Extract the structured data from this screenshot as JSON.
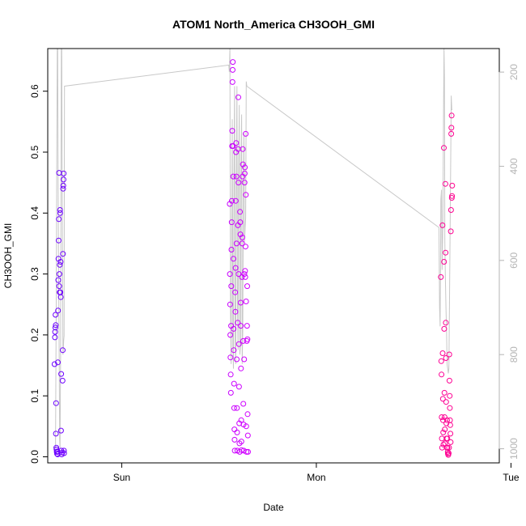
{
  "chart_data": {
    "type": "scatter",
    "title": "ATOM1 North_America CH3OOH_GMI",
    "xlabel": "Date",
    "ylabel": "CH3OOH_GMI",
    "x_ticks": [
      "Sun",
      "Mon",
      "Tue"
    ],
    "x_tick_values": [
      0,
      1,
      2
    ],
    "xlim": [
      -0.38,
      1.94
    ],
    "ylim": [
      -0.01,
      0.67
    ],
    "y_ticks": [
      0.0,
      0.1,
      0.2,
      0.3,
      0.4,
      0.5,
      0.6
    ],
    "right_axis": {
      "label": "",
      "ticks": [
        200,
        400,
        600,
        800,
        1000
      ],
      "reversed": true,
      "lim": [
        1030,
        150
      ],
      "color": "#b4b4b4"
    },
    "grid": false,
    "legend": "none",
    "colors": {
      "points_start": "#6a00ff",
      "points_mid": "#d400ff",
      "points_end": "#ff0090",
      "pressure_line": "#c8c8c8",
      "axis": "#000000"
    },
    "series": [
      {
        "values": [
          {
            "x": -0.345,
            "y": 0.152
          },
          {
            "x": -0.343,
            "y": 0.196
          },
          {
            "x": -0.342,
            "y": 0.205
          },
          {
            "x": -0.341,
            "y": 0.212
          },
          {
            "x": -0.34,
            "y": 0.233
          },
          {
            "x": -0.339,
            "y": 0.216
          },
          {
            "x": -0.338,
            "y": 0.038
          },
          {
            "x": -0.337,
            "y": 0.088
          },
          {
            "x": -0.336,
            "y": 0.015
          },
          {
            "x": -0.334,
            "y": 0.008
          },
          {
            "x": -0.332,
            "y": 0.005
          },
          {
            "x": -0.33,
            "y": 0.009
          },
          {
            "x": -0.328,
            "y": 0.155
          },
          {
            "x": -0.327,
            "y": 0.24
          },
          {
            "x": -0.326,
            "y": 0.29
          },
          {
            "x": -0.325,
            "y": 0.325
          },
          {
            "x": -0.324,
            "y": 0.355
          },
          {
            "x": -0.323,
            "y": 0.39
          },
          {
            "x": -0.322,
            "y": 0.466
          },
          {
            "x": -0.321,
            "y": 0.28
          },
          {
            "x": -0.32,
            "y": 0.3
          },
          {
            "x": -0.319,
            "y": 0.27
          },
          {
            "x": -0.318,
            "y": 0.315
          },
          {
            "x": -0.317,
            "y": 0.405
          },
          {
            "x": -0.316,
            "y": 0.4
          },
          {
            "x": -0.315,
            "y": 0.27
          },
          {
            "x": -0.314,
            "y": 0.32
          },
          {
            "x": -0.313,
            "y": 0.262
          },
          {
            "x": -0.312,
            "y": 0.043
          },
          {
            "x": -0.311,
            "y": 0.136
          },
          {
            "x": -0.31,
            "y": 0.01
          },
          {
            "x": -0.308,
            "y": 0.004
          },
          {
            "x": -0.306,
            "y": 0.007
          },
          {
            "x": -0.304,
            "y": 0.125
          },
          {
            "x": -0.303,
            "y": 0.175
          },
          {
            "x": -0.302,
            "y": 0.333
          },
          {
            "x": -0.301,
            "y": 0.44
          },
          {
            "x": -0.3,
            "y": 0.445
          },
          {
            "x": -0.299,
            "y": 0.455
          },
          {
            "x": -0.298,
            "y": 0.465
          },
          {
            "x": -0.297,
            "y": 0.01
          },
          {
            "x": -0.296,
            "y": 0.006
          },
          {
            "x": -0.335,
            "y": 0.012
          },
          {
            "x": -0.329,
            "y": 0.004
          },
          {
            "x": -0.331,
            "y": 0.008
          }
        ]
      },
      {
        "values": [
          {
            "x": 0.555,
            "y": 0.415
          },
          {
            "x": 0.556,
            "y": 0.3
          },
          {
            "x": 0.557,
            "y": 0.25
          },
          {
            "x": 0.558,
            "y": 0.2
          },
          {
            "x": 0.559,
            "y": 0.163
          },
          {
            "x": 0.56,
            "y": 0.135
          },
          {
            "x": 0.561,
            "y": 0.105
          },
          {
            "x": 0.562,
            "y": 0.215
          },
          {
            "x": 0.563,
            "y": 0.28
          },
          {
            "x": 0.564,
            "y": 0.34
          },
          {
            "x": 0.565,
            "y": 0.385
          },
          {
            "x": 0.566,
            "y": 0.42
          },
          {
            "x": 0.567,
            "y": 0.51
          },
          {
            "x": 0.568,
            "y": 0.535
          },
          {
            "x": 0.569,
            "y": 0.615
          },
          {
            "x": 0.57,
            "y": 0.635
          },
          {
            "x": 0.571,
            "y": 0.648
          },
          {
            "x": 0.572,
            "y": 0.51
          },
          {
            "x": 0.573,
            "y": 0.46
          },
          {
            "x": 0.574,
            "y": 0.325
          },
          {
            "x": 0.575,
            "y": 0.21
          },
          {
            "x": 0.576,
            "y": 0.175
          },
          {
            "x": 0.577,
            "y": 0.12
          },
          {
            "x": 0.578,
            "y": 0.08
          },
          {
            "x": 0.579,
            "y": 0.045
          },
          {
            "x": 0.58,
            "y": 0.028
          },
          {
            "x": 0.581,
            "y": 0.01
          },
          {
            "x": 0.583,
            "y": 0.27
          },
          {
            "x": 0.584,
            "y": 0.238
          },
          {
            "x": 0.585,
            "y": 0.31
          },
          {
            "x": 0.586,
            "y": 0.42
          },
          {
            "x": 0.587,
            "y": 0.5
          },
          {
            "x": 0.588,
            "y": 0.515
          },
          {
            "x": 0.589,
            "y": 0.46
          },
          {
            "x": 0.59,
            "y": 0.35
          },
          {
            "x": 0.591,
            "y": 0.16
          },
          {
            "x": 0.592,
            "y": 0.08
          },
          {
            "x": 0.593,
            "y": 0.04
          },
          {
            "x": 0.594,
            "y": 0.01
          },
          {
            "x": 0.596,
            "y": 0.22
          },
          {
            "x": 0.597,
            "y": 0.38
          },
          {
            "x": 0.598,
            "y": 0.505
          },
          {
            "x": 0.599,
            "y": 0.59
          },
          {
            "x": 0.6,
            "y": 0.45
          },
          {
            "x": 0.601,
            "y": 0.3
          },
          {
            "x": 0.602,
            "y": 0.185
          },
          {
            "x": 0.603,
            "y": 0.115
          },
          {
            "x": 0.604,
            "y": 0.055
          },
          {
            "x": 0.605,
            "y": 0.022
          },
          {
            "x": 0.606,
            "y": 0.008
          },
          {
            "x": 0.608,
            "y": 0.402
          },
          {
            "x": 0.609,
            "y": 0.385
          },
          {
            "x": 0.61,
            "y": 0.365
          },
          {
            "x": 0.611,
            "y": 0.253
          },
          {
            "x": 0.612,
            "y": 0.215
          },
          {
            "x": 0.613,
            "y": 0.145
          },
          {
            "x": 0.614,
            "y": 0.06
          },
          {
            "x": 0.615,
            "y": 0.025
          },
          {
            "x": 0.616,
            "y": 0.011
          },
          {
            "x": 0.618,
            "y": 0.295
          },
          {
            "x": 0.619,
            "y": 0.35
          },
          {
            "x": 0.62,
            "y": 0.36
          },
          {
            "x": 0.621,
            "y": 0.46
          },
          {
            "x": 0.622,
            "y": 0.505
          },
          {
            "x": 0.623,
            "y": 0.48
          },
          {
            "x": 0.624,
            "y": 0.19
          },
          {
            "x": 0.625,
            "y": 0.087
          },
          {
            "x": 0.626,
            "y": 0.053
          },
          {
            "x": 0.627,
            "y": 0.01
          },
          {
            "x": 0.629,
            "y": 0.16
          },
          {
            "x": 0.63,
            "y": 0.3
          },
          {
            "x": 0.631,
            "y": 0.45
          },
          {
            "x": 0.632,
            "y": 0.465
          },
          {
            "x": 0.633,
            "y": 0.475
          },
          {
            "x": 0.634,
            "y": 0.305
          },
          {
            "x": 0.635,
            "y": 0.295
          },
          {
            "x": 0.636,
            "y": 0.345
          },
          {
            "x": 0.637,
            "y": 0.53
          },
          {
            "x": 0.638,
            "y": 0.43
          },
          {
            "x": 0.639,
            "y": 0.255
          },
          {
            "x": 0.64,
            "y": 0.05
          },
          {
            "x": 0.641,
            "y": 0.008
          },
          {
            "x": 0.643,
            "y": 0.19
          },
          {
            "x": 0.644,
            "y": 0.215
          },
          {
            "x": 0.645,
            "y": 0.28
          },
          {
            "x": 0.646,
            "y": 0.193
          },
          {
            "x": 0.647,
            "y": 0.07
          },
          {
            "x": 0.648,
            "y": 0.035
          },
          {
            "x": 0.649,
            "y": 0.008
          }
        ]
      },
      {
        "values": [
          {
            "x": 1.64,
            "y": 0.295
          },
          {
            "x": 1.642,
            "y": 0.157
          },
          {
            "x": 1.643,
            "y": 0.135
          },
          {
            "x": 1.644,
            "y": 0.065
          },
          {
            "x": 1.645,
            "y": 0.03
          },
          {
            "x": 1.646,
            "y": 0.015
          },
          {
            "x": 1.648,
            "y": 0.38
          },
          {
            "x": 1.649,
            "y": 0.17
          },
          {
            "x": 1.65,
            "y": 0.095
          },
          {
            "x": 1.651,
            "y": 0.06
          },
          {
            "x": 1.652,
            "y": 0.04
          },
          {
            "x": 1.653,
            "y": 0.02
          },
          {
            "x": 1.655,
            "y": 0.507
          },
          {
            "x": 1.656,
            "y": 0.32
          },
          {
            "x": 1.657,
            "y": 0.21
          },
          {
            "x": 1.658,
            "y": 0.105
          },
          {
            "x": 1.659,
            "y": 0.065
          },
          {
            "x": 1.66,
            "y": 0.045
          },
          {
            "x": 1.661,
            "y": 0.022
          },
          {
            "x": 1.663,
            "y": 0.448
          },
          {
            "x": 1.664,
            "y": 0.335
          },
          {
            "x": 1.665,
            "y": 0.22
          },
          {
            "x": 1.666,
            "y": 0.162
          },
          {
            "x": 1.667,
            "y": 0.09
          },
          {
            "x": 1.668,
            "y": 0.055
          },
          {
            "x": 1.669,
            "y": 0.03
          },
          {
            "x": 1.67,
            "y": 0.015
          },
          {
            "x": 1.672,
            "y": 0.06
          },
          {
            "x": 1.673,
            "y": 0.03
          },
          {
            "x": 1.674,
            "y": 0.015
          },
          {
            "x": 1.675,
            "y": 0.008
          },
          {
            "x": 1.676,
            "y": 0.005
          },
          {
            "x": 1.678,
            "y": 0.003
          },
          {
            "x": 1.68,
            "y": 0.006
          },
          {
            "x": 1.682,
            "y": 0.015
          },
          {
            "x": 1.683,
            "y": 0.168
          },
          {
            "x": 1.684,
            "y": 0.125
          },
          {
            "x": 1.685,
            "y": 0.1
          },
          {
            "x": 1.686,
            "y": 0.08
          },
          {
            "x": 1.687,
            "y": 0.06
          },
          {
            "x": 1.688,
            "y": 0.052
          },
          {
            "x": 1.689,
            "y": 0.038
          },
          {
            "x": 1.69,
            "y": 0.024
          },
          {
            "x": 1.691,
            "y": 0.37
          },
          {
            "x": 1.692,
            "y": 0.405
          },
          {
            "x": 1.693,
            "y": 0.53
          },
          {
            "x": 1.694,
            "y": 0.54
          },
          {
            "x": 1.695,
            "y": 0.56
          },
          {
            "x": 1.696,
            "y": 0.425
          },
          {
            "x": 1.697,
            "y": 0.428
          },
          {
            "x": 1.698,
            "y": 0.445
          }
        ]
      }
    ],
    "pressure_line": [
      {
        "x": -0.34,
        "p": 1000
      },
      {
        "x": -0.336,
        "p": 650
      },
      {
        "x": -0.333,
        "p": 320
      },
      {
        "x": -0.331,
        "p": 150
      },
      {
        "x": -0.329,
        "p": 150
      },
      {
        "x": -0.327,
        "p": 380
      },
      {
        "x": -0.325,
        "p": 560
      },
      {
        "x": -0.323,
        "p": 700
      },
      {
        "x": -0.321,
        "p": 820
      },
      {
        "x": -0.319,
        "p": 980
      },
      {
        "x": -0.317,
        "p": 1000
      },
      {
        "x": -0.314,
        "p": 800
      },
      {
        "x": -0.312,
        "p": 450
      },
      {
        "x": -0.31,
        "p": 150
      },
      {
        "x": -0.308,
        "p": 150
      },
      {
        "x": -0.306,
        "p": 400
      },
      {
        "x": -0.304,
        "p": 600
      },
      {
        "x": -0.302,
        "p": 800
      },
      {
        "x": -0.3,
        "p": 790
      },
      {
        "x": -0.298,
        "p": 770
      },
      {
        "x": -0.296,
        "p": 760
      },
      {
        "x": -0.294,
        "p": 230
      },
      {
        "x": 0.55,
        "p": 185
      },
      {
        "x": 0.553,
        "p": 200
      },
      {
        "x": 0.556,
        "p": 150
      },
      {
        "x": 0.559,
        "p": 700
      },
      {
        "x": 0.562,
        "p": 820
      },
      {
        "x": 0.565,
        "p": 560
      },
      {
        "x": 0.568,
        "p": 300
      },
      {
        "x": 0.571,
        "p": 780
      },
      {
        "x": 0.574,
        "p": 830
      },
      {
        "x": 0.577,
        "p": 400
      },
      {
        "x": 0.58,
        "p": 230
      },
      {
        "x": 0.583,
        "p": 780
      },
      {
        "x": 0.586,
        "p": 820
      },
      {
        "x": 0.589,
        "p": 430
      },
      {
        "x": 0.592,
        "p": 230
      },
      {
        "x": 0.595,
        "p": 700
      },
      {
        "x": 0.598,
        "p": 790
      },
      {
        "x": 0.601,
        "p": 420
      },
      {
        "x": 0.604,
        "p": 270
      },
      {
        "x": 0.607,
        "p": 800
      },
      {
        "x": 0.61,
        "p": 780
      },
      {
        "x": 0.613,
        "p": 400
      },
      {
        "x": 0.616,
        "p": 290
      },
      {
        "x": 0.619,
        "p": 820
      },
      {
        "x": 0.622,
        "p": 750
      },
      {
        "x": 0.625,
        "p": 450
      },
      {
        "x": 0.628,
        "p": 330
      },
      {
        "x": 0.631,
        "p": 560
      },
      {
        "x": 0.634,
        "p": 530
      },
      {
        "x": 0.637,
        "p": 510
      },
      {
        "x": 0.64,
        "p": 220
      },
      {
        "x": 0.643,
        "p": 230
      },
      {
        "x": 1.63,
        "p": 530
      },
      {
        "x": 1.633,
        "p": 700
      },
      {
        "x": 1.636,
        "p": 740
      },
      {
        "x": 1.64,
        "p": 470
      },
      {
        "x": 1.643,
        "p": 450
      },
      {
        "x": 1.646,
        "p": 620
      },
      {
        "x": 1.65,
        "p": 520
      },
      {
        "x": 1.654,
        "p": 260
      },
      {
        "x": 1.656,
        "p": 150
      },
      {
        "x": 1.658,
        "p": 210
      },
      {
        "x": 1.66,
        "p": 560
      },
      {
        "x": 1.663,
        "p": 640
      },
      {
        "x": 1.666,
        "p": 700
      },
      {
        "x": 1.669,
        "p": 750
      },
      {
        "x": 1.672,
        "p": 820
      },
      {
        "x": 1.675,
        "p": 830
      },
      {
        "x": 1.678,
        "p": 840
      },
      {
        "x": 1.681,
        "p": 830
      },
      {
        "x": 1.684,
        "p": 700
      },
      {
        "x": 1.687,
        "p": 560
      },
      {
        "x": 1.69,
        "p": 400
      },
      {
        "x": 1.693,
        "p": 250
      },
      {
        "x": 1.696,
        "p": 280
      },
      {
        "x": 1.699,
        "p": 280
      }
    ]
  }
}
